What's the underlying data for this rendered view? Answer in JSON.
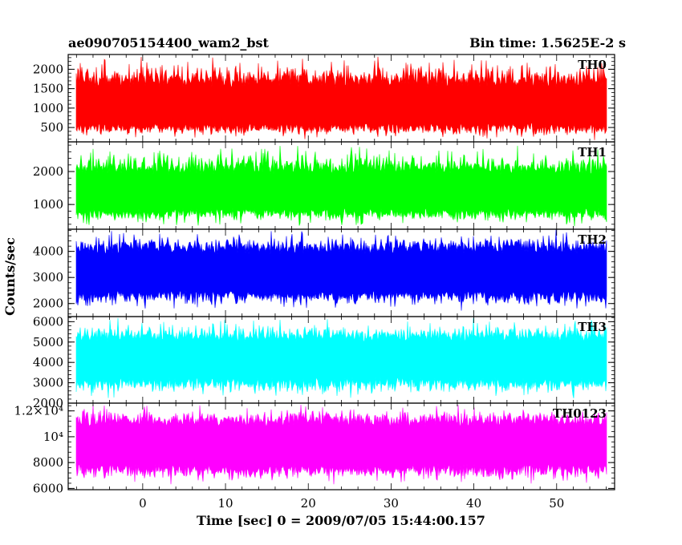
{
  "title_left": "ae090705154400_wam2_bst",
  "title_right": "Bin time: 1.5625E-2 s",
  "xlabel": "Time [sec] 0 = 2009/07/05 15:44:00.157",
  "ylabel": "Counts/sec",
  "chart_data": {
    "type": "line",
    "title": "ae090705154400_wam2_bst",
    "subtitle": "Bin time: 1.5625E-2 s",
    "xlabel": "Time [sec] 0 = 2009/07/05 15:44:00.157",
    "ylabel": "Counts/sec",
    "xlim": [
      -9,
      57
    ],
    "data_x_range": [
      -8,
      56
    ],
    "bin_time": 0.015625,
    "xticks": [
      0,
      10,
      20,
      30,
      40,
      50
    ],
    "xtick_labels": [
      "0",
      "10",
      "20",
      "30",
      "40",
      "50"
    ],
    "grid": false,
    "panels": [
      {
        "name": "TH0",
        "color": "#ff0000",
        "ylim": [
          130,
          2380
        ],
        "yticks": [
          500,
          1000,
          1500,
          2000
        ],
        "ytick_labels": [
          "500",
          "1000",
          "1500",
          "2000"
        ],
        "mean": 1000,
        "low_typical": 420,
        "high_typical": 1800,
        "low_extreme": 170,
        "high_extreme": 2380
      },
      {
        "name": "TH1",
        "color": "#00ff00",
        "ylim": [
          250,
          2900
        ],
        "yticks": [
          1000,
          2000
        ],
        "ytick_labels": [
          "1000",
          "2000"
        ],
        "mean": 1350,
        "low_typical": 650,
        "high_typical": 2200,
        "low_extreme": 300,
        "high_extreme": 2900
      },
      {
        "name": "TH2",
        "color": "#0000ff",
        "ylim": [
          1500,
          4850
        ],
        "yticks": [
          2000,
          3000,
          4000
        ],
        "ytick_labels": [
          "2000",
          "3000",
          "4000"
        ],
        "mean": 3100,
        "low_typical": 2200,
        "high_typical": 4300,
        "low_extreme": 1700,
        "high_extreme": 4850
      },
      {
        "name": "TH3",
        "color": "#00ffff",
        "ylim": [
          2000,
          6250
        ],
        "yticks": [
          2000,
          3000,
          4000,
          5000,
          6000
        ],
        "ytick_labels": [
          "2000",
          "3000",
          "4000",
          "5000",
          "6000"
        ],
        "mean": 4200,
        "low_typical": 2800,
        "high_typical": 5400,
        "low_extreme": 2200,
        "high_extreme": 6250
      },
      {
        "name": "TH0123",
        "color": "#ff00ff",
        "ylim": [
          5900,
          12600
        ],
        "yticks": [
          6000,
          8000,
          10000,
          12000
        ],
        "ytick_labels": [
          "6000",
          "8000",
          "10⁴",
          "1.2×10⁴"
        ],
        "mean": 9300,
        "low_typical": 7200,
        "high_typical": 11500,
        "low_extreme": 6200,
        "high_extreme": 12600
      }
    ]
  }
}
